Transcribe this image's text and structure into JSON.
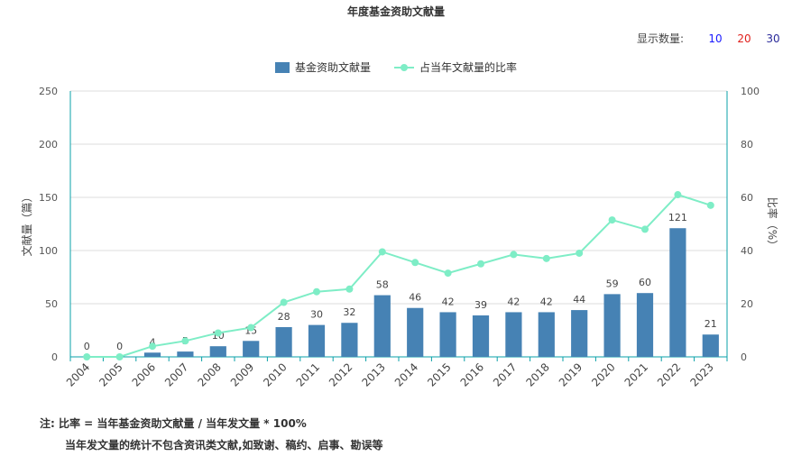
{
  "title": "年度基金资助文献量",
  "count_selector": {
    "label": "显示数量:",
    "options": [
      {
        "label": "10",
        "color": "#1a1aff"
      },
      {
        "label": "20",
        "color": "#e0201c"
      },
      {
        "label": "30",
        "color": "#2a2a9a"
      }
    ]
  },
  "colors": {
    "bar": "#4682B4",
    "line": "#7EEDC6",
    "axis": "#0aa0a8",
    "grid": "#dcdcdc"
  },
  "chart_data": {
    "type": "bar",
    "categories": [
      "2004",
      "2005",
      "2006",
      "2007",
      "2008",
      "2009",
      "2010",
      "2011",
      "2012",
      "2013",
      "2014",
      "2015",
      "2016",
      "2017",
      "2018",
      "2019",
      "2020",
      "2021",
      "2022",
      "2023"
    ],
    "series": [
      {
        "name": "基金资助文献量",
        "type": "bar",
        "axis": "left",
        "values": [
          0,
          0,
          4,
          5,
          10,
          15,
          28,
          30,
          32,
          58,
          46,
          42,
          39,
          42,
          42,
          44,
          59,
          60,
          121,
          21
        ]
      },
      {
        "name": "占当年文献量的比率",
        "type": "line",
        "axis": "right",
        "values": [
          0,
          0,
          4,
          6,
          9,
          11,
          20.5,
          24.5,
          25.5,
          39.5,
          35.5,
          31.5,
          35,
          38.5,
          37,
          39,
          51.5,
          48,
          61,
          57
        ]
      }
    ],
    "ylabel": "文献量（篇）",
    "y2label": "比率（%）",
    "ylim": [
      0,
      250
    ],
    "y2lim": [
      0,
      100
    ],
    "yticks": [
      0,
      50,
      100,
      150,
      200,
      250
    ],
    "y2ticks": [
      0,
      20,
      40,
      60,
      80,
      100
    ],
    "grid": true,
    "legend_position": "top-center"
  },
  "notes": {
    "line1": "注:  比率 = 当年基金资助文献量 / 当年发文量 * 100%",
    "line2": "当年发文量的统计不包含资讯类文献,如致谢、稿约、启事、勘误等"
  }
}
